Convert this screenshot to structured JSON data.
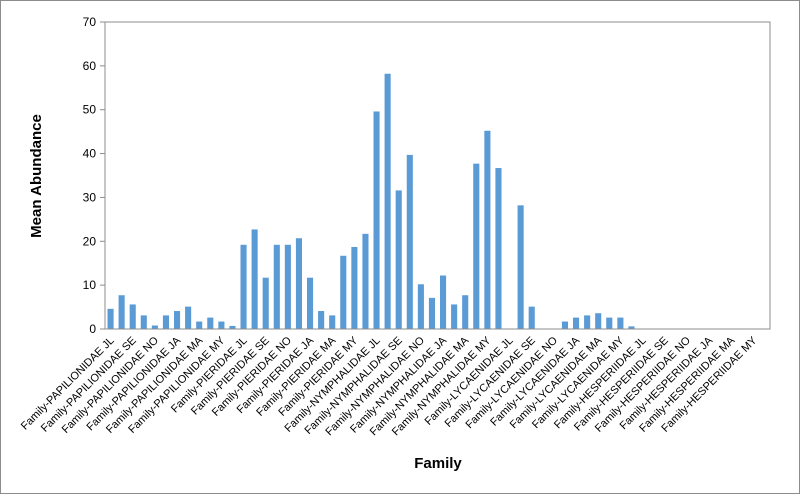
{
  "chart_data": {
    "type": "bar",
    "xlabel": "Family",
    "ylabel": "Mean  Abundance",
    "ylim": [
      0,
      70
    ],
    "yticks": [
      0,
      10,
      20,
      30,
      40,
      50,
      60,
      70
    ],
    "grid": false,
    "legend": "none",
    "bar_color": "#5b9bd5",
    "categories": [
      "Family-PAPILIONIDAE JL",
      "",
      "Family-PAPILIONIDAE SE",
      "",
      "Family-PAPILIONIDAE NO",
      "",
      "Family-PAPILIONIDAE JA",
      "",
      "Family-PAPILIONIDAE MA",
      "",
      "Family-PAPILIONIDAE MY",
      "",
      "Family-PIERIDAE JL",
      "",
      "Family-PIERIDAE SE",
      "",
      "Family-PIERIDAE NO",
      "",
      "Family-PIERIDAE JA",
      "",
      "Family-PIERIDAE MA",
      "",
      "Family-PIERIDAE MY",
      "",
      "Family-NYMPHALIDAE JL",
      "",
      "Family-NYMPHALIDAE SE",
      "",
      "Family-NYMPHALIDAE NO",
      "",
      "Family-NYMPHALIDAE JA",
      "",
      "Family-NYMPHALIDAE MA",
      "",
      "Family-NYMPHALIDAE MY",
      "",
      "Family-LYCAENIDAE JL",
      "",
      "Family-LYCAENIDAE SE",
      "",
      "Family-LYCAENIDAE NO",
      "",
      "Family-LYCAENIDAE JA",
      "",
      "Family-LYCAENIDAE MA",
      "",
      "Family-LYCAENIDAE MY",
      "",
      "Family-HESPERIIDAE JL",
      "",
      "Family-HESPERIIDAE SE",
      "",
      "Family-HESPERIIDAE NO",
      "",
      "Family-HESPERIIDAE JA",
      "",
      "Family-HESPERIIDAE MA",
      "",
      "Family-HESPERIIDAE MY",
      ""
    ],
    "values": [
      4.6,
      7.7,
      5.6,
      3.1,
      0.8,
      3.1,
      4.1,
      5.1,
      1.7,
      2.6,
      1.7,
      0.7,
      19.2,
      22.7,
      11.7,
      19.2,
      19.2,
      20.7,
      11.7,
      4.1,
      3.1,
      16.7,
      18.7,
      21.7,
      49.6,
      58.2,
      31.6,
      39.7,
      10.2,
      7.1,
      12.2,
      5.6,
      7.7,
      37.7,
      45.2,
      36.7,
      0,
      28.2,
      5.1,
      0,
      0,
      1.7,
      2.6,
      3.1,
      3.6,
      2.6,
      2.6,
      0.6,
      0,
      0,
      0,
      0,
      0,
      0,
      0,
      0,
      0,
      0,
      0,
      0
    ]
  }
}
